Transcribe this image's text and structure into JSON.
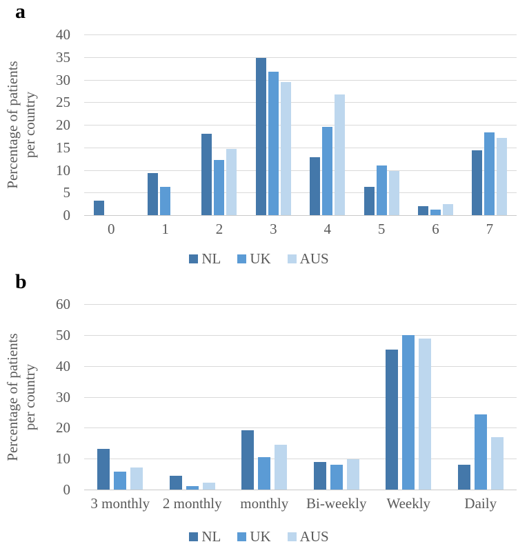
{
  "figure": {
    "panels": [
      {
        "label": "a"
      },
      {
        "label": "b"
      }
    ]
  },
  "colors": {
    "nl": "#4478AA",
    "uk": "#5B9BD5",
    "aus": "#BDD7EE",
    "gridline": "#D9D9D9",
    "axis_line": "#C9C9C9",
    "tick_text": "#595959",
    "panel_label": "#000000"
  },
  "chart_data": [
    {
      "type": "bar",
      "panel": "a",
      "title": "",
      "xlabel": "",
      "ylabel": "Percentage of patients per country",
      "ylabel_lines": [
        "Percentage of patients",
        "per country"
      ],
      "categories": [
        "0",
        "1",
        "2",
        "3",
        "4",
        "5",
        "6",
        "7"
      ],
      "series": [
        {
          "name": "NL",
          "color": "#4478AA",
          "values": [
            3.2,
            9.3,
            18.0,
            34.8,
            12.8,
            6.2,
            2.0,
            14.4
          ]
        },
        {
          "name": "UK",
          "color": "#5B9BD5",
          "values": [
            0,
            6.2,
            12.2,
            31.8,
            19.5,
            11.0,
            1.3,
            18.3
          ]
        },
        {
          "name": "AUS",
          "color": "#BDD7EE",
          "values": [
            0,
            0,
            14.7,
            29.4,
            26.8,
            9.8,
            2.5,
            17.1
          ]
        }
      ],
      "ylim": [
        0,
        40
      ],
      "yticks": [
        0,
        5,
        10,
        15,
        20,
        25,
        30,
        35,
        40
      ],
      "grid": true,
      "legend_position": "bottom",
      "legend": [
        "NL",
        "UK",
        "AUS"
      ]
    },
    {
      "type": "bar",
      "panel": "b",
      "title": "",
      "xlabel": "",
      "ylabel": "Percentage of patients per country",
      "ylabel_lines": [
        "Percentage of patients",
        "per country"
      ],
      "categories": [
        "3 monthly",
        "2 monthly",
        "monthly",
        "Bi-weekly",
        "Weekly",
        "Daily"
      ],
      "series": [
        {
          "name": "NL",
          "color": "#4478AA",
          "values": [
            13.2,
            4.5,
            19.3,
            9.0,
            45.4,
            8.1
          ]
        },
        {
          "name": "UK",
          "color": "#5B9BD5",
          "values": [
            5.7,
            1.1,
            10.5,
            8.0,
            50.0,
            24.3
          ]
        },
        {
          "name": "AUS",
          "color": "#BDD7EE",
          "values": [
            7.2,
            2.3,
            14.6,
            9.8,
            48.8,
            17.0
          ]
        }
      ],
      "ylim": [
        0,
        60
      ],
      "yticks": [
        0,
        10,
        20,
        30,
        40,
        50,
        60
      ],
      "grid": true,
      "legend_position": "bottom",
      "legend": [
        "NL",
        "UK",
        "AUS"
      ]
    }
  ]
}
